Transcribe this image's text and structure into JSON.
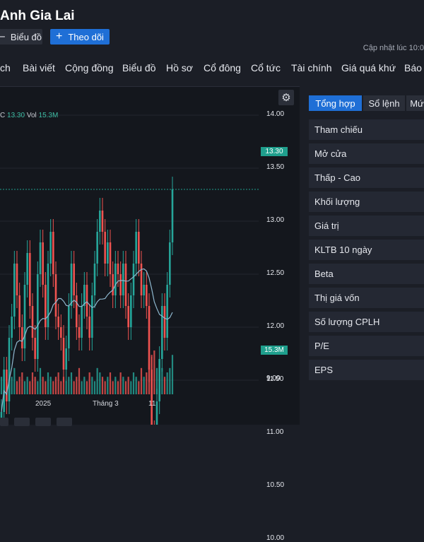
{
  "header": {
    "title": "Anh Gia Lai"
  },
  "actions": {
    "chart_label": "Biểu đồ",
    "follow_label": "Theo dõi"
  },
  "update_text": "Cập nhật lúc  10:0",
  "nav": [
    "ch",
    "Bài viết",
    "Cộng đồng",
    "Biểu đồ",
    "Hồ sơ",
    "Cổ đông",
    "Cổ tức",
    "Tài chính",
    "Giá quá khứ",
    "Báo c"
  ],
  "chart": {
    "legend": {
      "c_label": "C",
      "c_value": "13.30",
      "vol_label": "Vol",
      "vol_value": "15.3M"
    },
    "price_tag": "13.30",
    "volume_tag": "15.3M",
    "colors": {
      "up": "#26a69a",
      "down": "#ef5350",
      "ma": "#8fb8cf",
      "price_tag": "#1f9f8d"
    }
  },
  "chart_data": {
    "type": "candlestick",
    "y_ticks": [
      "14.00",
      "13.50",
      "13.00",
      "12.50",
      "12.00",
      "11.50",
      "11.00",
      "10.50",
      "10.00",
      "9.00"
    ],
    "x_ticks": [
      "2025",
      "Tháng 3",
      "11"
    ],
    "ylim": [
      9.0,
      14.0
    ],
    "last_close": 13.3,
    "last_volume": "15.3M",
    "closes": [
      11.2,
      11.6,
      11.3,
      11.9,
      12.1,
      12.6,
      12.3,
      12.0,
      11.8,
      12.4,
      12.7,
      12.2,
      11.9,
      11.7,
      12.5,
      12.8,
      12.4,
      12.0,
      12.6,
      12.9,
      12.5,
      12.1,
      12.0,
      11.9,
      11.6,
      11.8,
      12.2,
      12.6,
      12.3,
      12.0,
      11.9,
      12.2,
      12.4,
      12.1,
      11.9,
      12.3,
      12.6,
      12.9,
      13.1,
      12.9,
      12.6,
      12.8,
      12.5,
      12.3,
      12.6,
      12.5,
      12.3,
      12.6,
      12.2,
      12.0,
      12.3,
      12.6,
      12.9,
      12.6,
      12.3,
      12.4,
      12.2,
      11.6,
      11.0,
      10.5,
      11.3,
      11.7,
      12.2,
      11.9,
      12.4,
      12.8,
      13.3
    ],
    "volumes": [
      0.4,
      0.3,
      0.5,
      0.3,
      0.4,
      0.6,
      0.3,
      0.4,
      0.5,
      0.3,
      0.4,
      0.3,
      0.5,
      0.4,
      0.3,
      0.6,
      0.4,
      0.3,
      0.5,
      0.4,
      0.3,
      0.4,
      0.5,
      0.3,
      0.4,
      0.3,
      0.4,
      0.5,
      0.3,
      0.4,
      0.6,
      0.3,
      0.4,
      0.3,
      0.5,
      0.4,
      0.3,
      0.6,
      0.5,
      0.4,
      0.3,
      0.4,
      0.5,
      0.3,
      0.4,
      0.3,
      0.5,
      0.4,
      0.3,
      0.4,
      0.3,
      0.5,
      0.4,
      0.3,
      0.6,
      0.4,
      0.5,
      0.7,
      0.9,
      1.0,
      0.6,
      0.5,
      0.6,
      0.4,
      0.5,
      0.6,
      0.9
    ]
  },
  "sidebar": {
    "tabs": [
      "Tổng hợp",
      "Sổ lệnh",
      "Mứ"
    ],
    "rows": [
      "Tham chiếu",
      "Mở cửa",
      "Thấp - Cao",
      "Khối lượng",
      "Giá trị",
      "KLTB 10 ngày",
      "Beta",
      "Thị giá vốn",
      "Số lượng CPLH",
      "P/E",
      "EPS"
    ]
  }
}
